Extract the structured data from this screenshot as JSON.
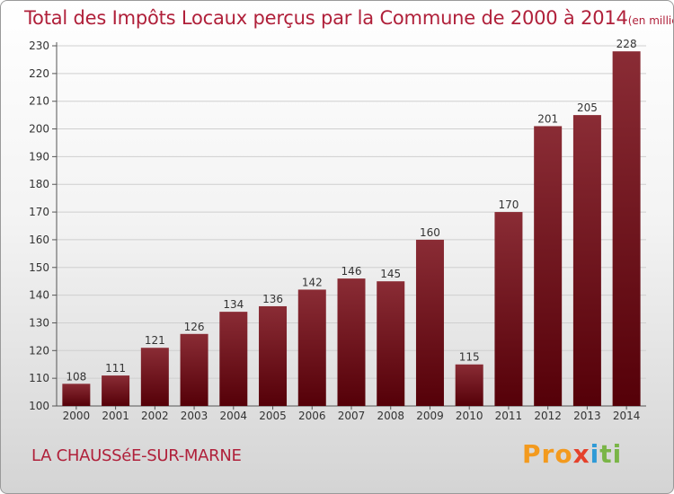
{
  "header": {
    "title": "Total des Impôts Locaux perçus par la Commune de 2000 à 2014",
    "unit": "(en milliers d'€)"
  },
  "footer": {
    "commune": "LA CHAUSSéE-SUR-MARNE",
    "logo": [
      "Pro",
      "x",
      "i",
      "ti"
    ]
  },
  "colors": {
    "bar_top": "#8a2c35",
    "bar_bottom": "#550008",
    "title": "#b0203a",
    "grid": "#cfcfcf"
  },
  "chart_data": {
    "type": "bar",
    "title": "Total des Impôts Locaux perçus par la Commune de 2000 à 2014",
    "xlabel": "",
    "ylabel": "",
    "categories": [
      "2000",
      "2001",
      "2002",
      "2003",
      "2004",
      "2005",
      "2006",
      "2007",
      "2008",
      "2009",
      "2010",
      "2011",
      "2012",
      "2013",
      "2014"
    ],
    "values": [
      108,
      111,
      121,
      126,
      134,
      136,
      142,
      146,
      145,
      160,
      115,
      170,
      201,
      205,
      228
    ],
    "ylim": [
      100,
      230
    ],
    "yticks": [
      100,
      110,
      120,
      130,
      140,
      150,
      160,
      170,
      180,
      190,
      200,
      210,
      220,
      230
    ],
    "grid": true
  }
}
